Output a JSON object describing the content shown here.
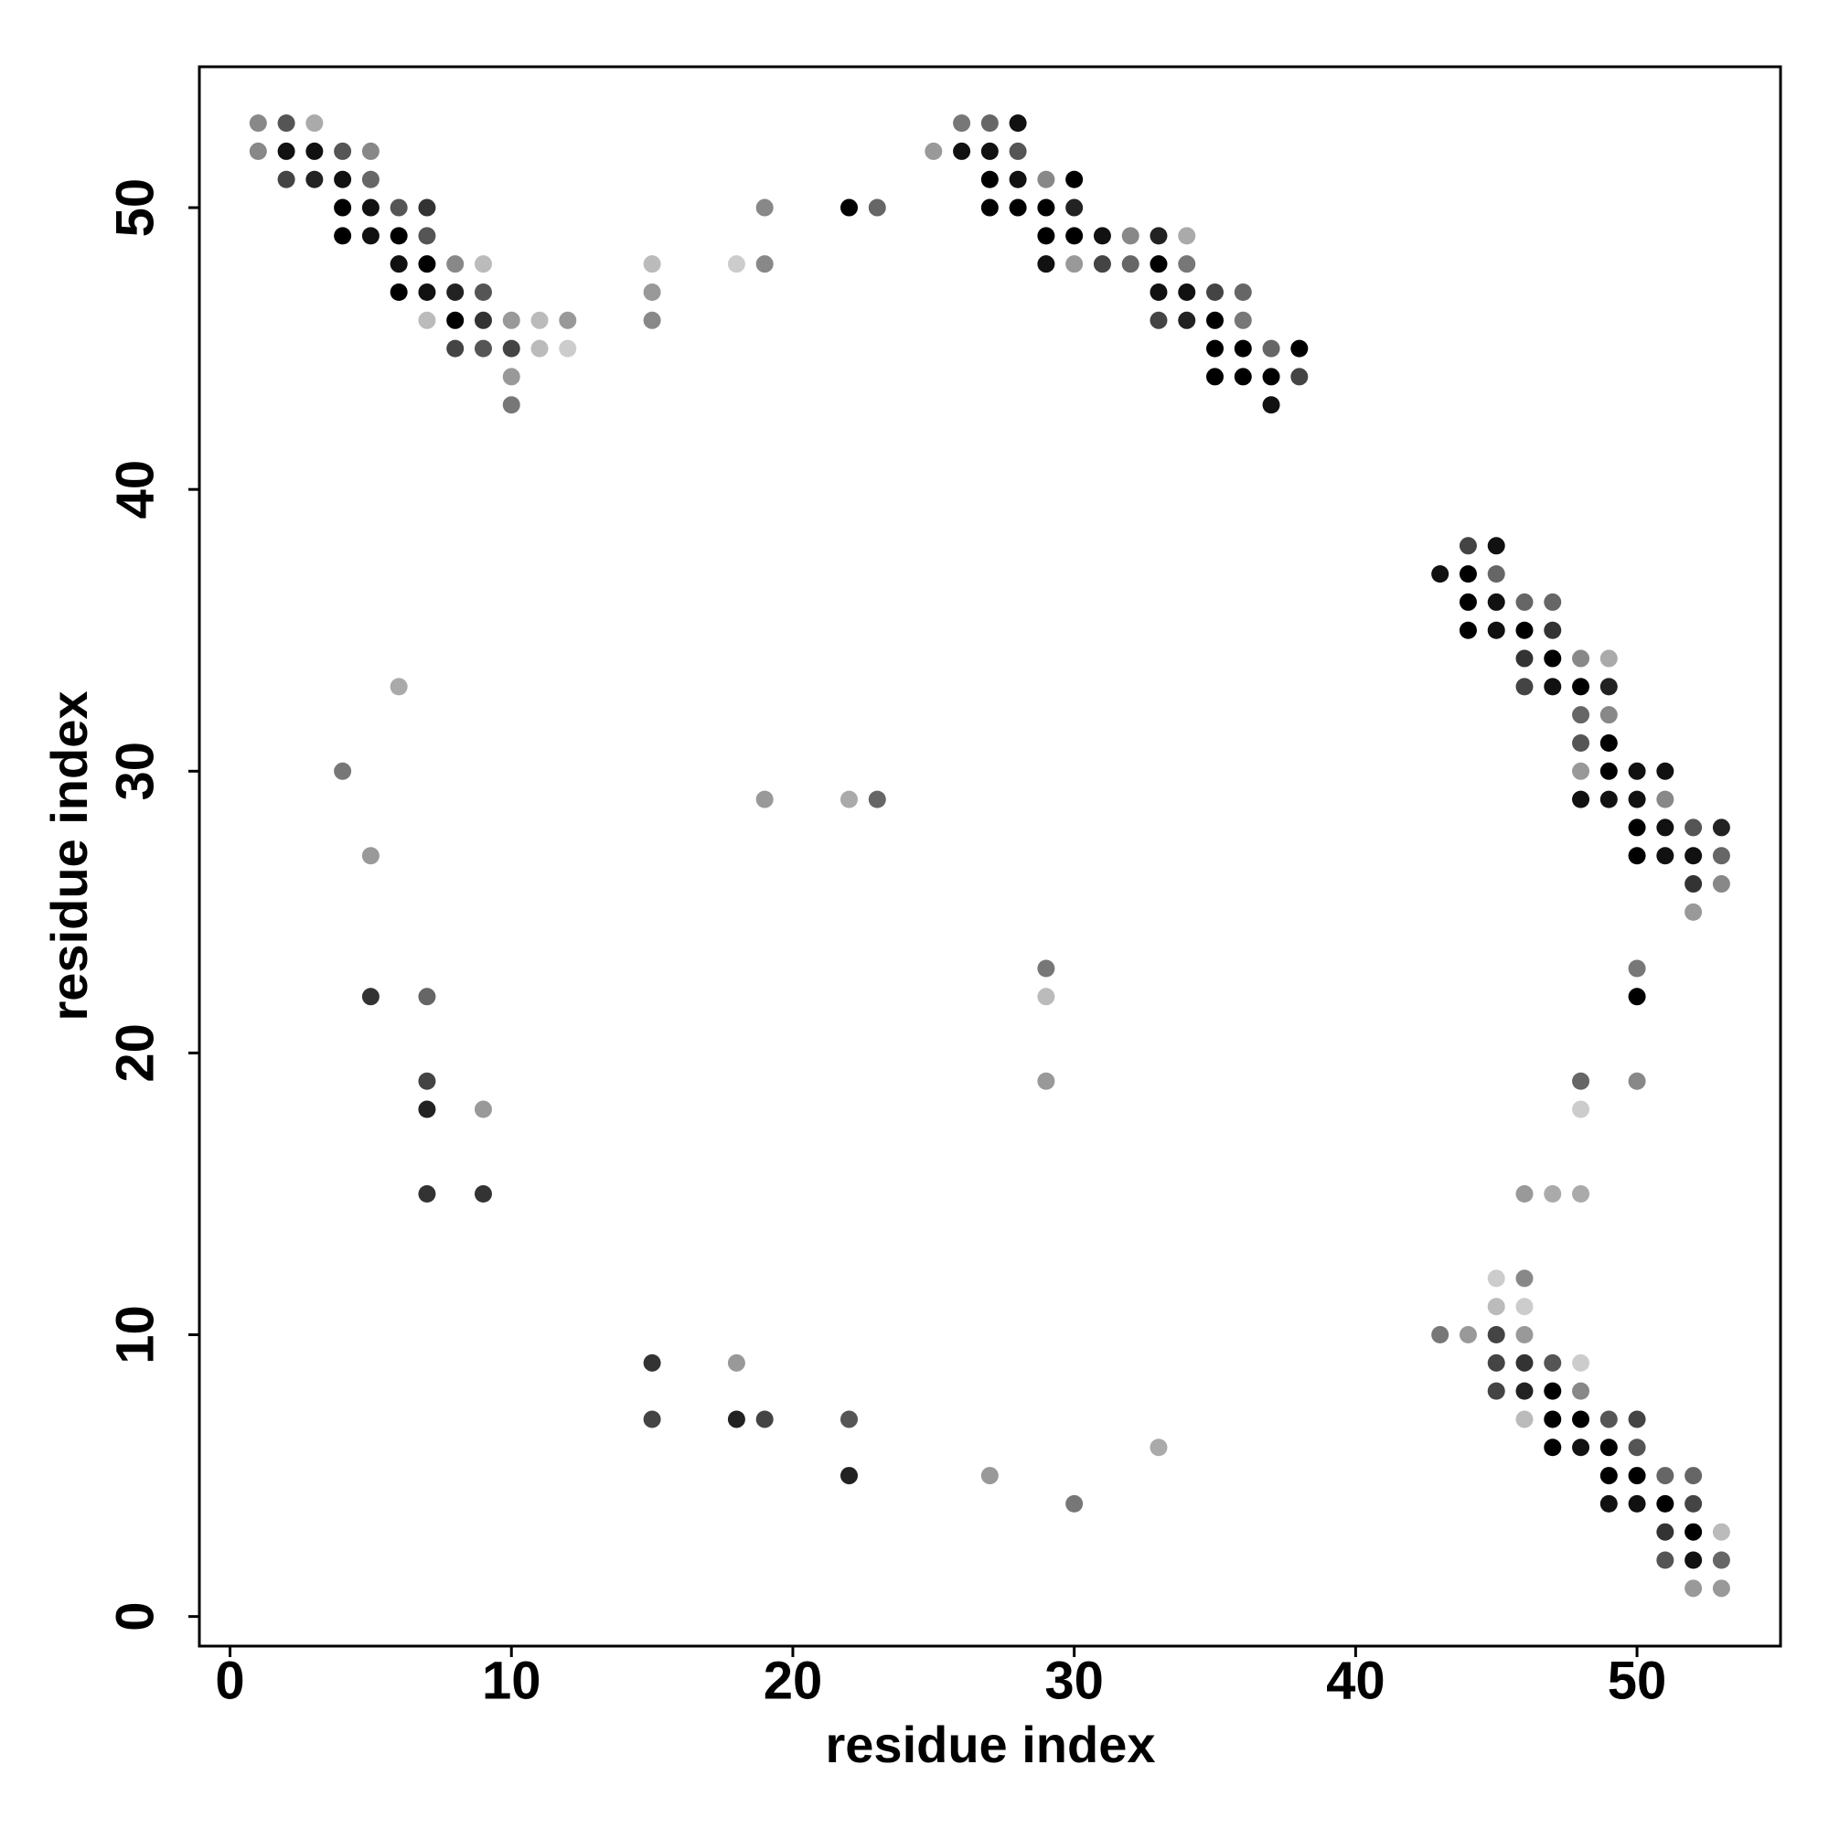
{
  "chart_data": {
    "type": "scatter",
    "xlabel": "residue index",
    "ylabel": "residue index",
    "xlim": [
      -1.09,
      55.1
    ],
    "ylim": [
      -1.05,
      55.0
    ],
    "xticks": [
      0,
      10,
      20,
      30,
      40,
      50
    ],
    "yticks": [
      0,
      10,
      20,
      30,
      40,
      50
    ],
    "x": [
      1,
      2,
      3,
      26,
      27,
      28,
      1,
      2,
      3,
      4,
      5,
      25,
      26,
      27,
      28,
      2,
      3,
      4,
      5,
      27,
      28,
      29,
      30,
      4,
      5,
      6,
      7,
      19,
      22,
      23,
      27,
      28,
      29,
      30,
      4,
      5,
      6,
      7,
      29,
      30,
      31,
      32,
      33,
      34,
      6,
      7,
      8,
      9,
      15,
      18,
      19,
      29,
      30,
      31,
      32,
      33,
      34,
      6,
      7,
      8,
      9,
      15,
      33,
      34,
      35,
      36,
      7,
      8,
      9,
      10,
      11,
      12,
      15,
      33,
      34,
      35,
      36,
      8,
      9,
      10,
      11,
      12,
      35,
      36,
      37,
      38,
      10,
      35,
      36,
      37,
      38,
      10,
      37,
      44,
      45,
      43,
      44,
      45,
      44,
      45,
      46,
      47,
      44,
      45,
      46,
      47,
      46,
      47,
      48,
      49,
      6,
      46,
      47,
      48,
      49,
      48,
      49,
      48,
      49,
      4,
      48,
      49,
      50,
      51,
      19,
      22,
      23,
      48,
      49,
      50,
      51,
      50,
      51,
      52,
      53,
      5,
      50,
      51,
      52,
      53,
      52,
      53,
      52,
      29,
      50,
      5,
      7,
      29,
      50,
      7,
      29,
      48,
      50,
      7,
      9,
      48,
      7,
      9,
      46,
      47,
      48,
      45,
      46,
      45,
      46,
      43,
      44,
      45,
      46,
      15,
      18,
      45,
      46,
      47,
      48,
      45,
      46,
      47,
      48,
      15,
      18,
      19,
      22,
      46,
      47,
      48,
      49,
      50,
      33,
      47,
      48,
      49,
      50,
      22,
      27,
      49,
      50,
      51,
      52,
      30,
      49,
      50,
      51,
      52,
      51,
      52,
      53,
      51,
      52,
      53,
      52,
      53
    ],
    "values": [
      53,
      53,
      53,
      53,
      53,
      53,
      52,
      52,
      52,
      52,
      52,
      52,
      52,
      52,
      52,
      51,
      51,
      51,
      51,
      51,
      51,
      51,
      51,
      50,
      50,
      50,
      50,
      50,
      50,
      50,
      50,
      50,
      50,
      50,
      49,
      49,
      49,
      49,
      49,
      49,
      49,
      49,
      49,
      49,
      48,
      48,
      48,
      48,
      48,
      48,
      48,
      48,
      48,
      48,
      48,
      48,
      48,
      47,
      47,
      47,
      47,
      47,
      47,
      47,
      47,
      47,
      46,
      46,
      46,
      46,
      46,
      46,
      46,
      46,
      46,
      46,
      46,
      45,
      45,
      45,
      45,
      45,
      45,
      45,
      45,
      45,
      44,
      44,
      44,
      44,
      44,
      43,
      43,
      38,
      38,
      37,
      37,
      37,
      36,
      36,
      36,
      36,
      35,
      35,
      35,
      35,
      34,
      34,
      34,
      34,
      33,
      33,
      33,
      33,
      33,
      32,
      32,
      31,
      31,
      30,
      30,
      30,
      30,
      30,
      29,
      29,
      29,
      29,
      29,
      29,
      29,
      28,
      28,
      28,
      28,
      27,
      27,
      27,
      27,
      27,
      26,
      26,
      25,
      23,
      23,
      22,
      22,
      22,
      22,
      19,
      19,
      19,
      19,
      18,
      18,
      18,
      15,
      15,
      15,
      15,
      15,
      12,
      12,
      11,
      11,
      10,
      10,
      10,
      10,
      9,
      9,
      9,
      9,
      9,
      9,
      8,
      8,
      8,
      8,
      7,
      7,
      7,
      7,
      7,
      7,
      7,
      7,
      7,
      6,
      6,
      6,
      6,
      6,
      5,
      5,
      5,
      5,
      5,
      5,
      4,
      4,
      4,
      4,
      4,
      3,
      3,
      3,
      2,
      2,
      2,
      1,
      1
    ],
    "colors": [
      "#888",
      "#555",
      "#aaa",
      "#777",
      "#666",
      "#111",
      "#888",
      "#111",
      "#111",
      "#555",
      "#888",
      "#999",
      "#111",
      "#111",
      "#555",
      "#444",
      "#222",
      "#111",
      "#666",
      "#000",
      "#111",
      "#888",
      "#000",
      "#000",
      "#111",
      "#555",
      "#333",
      "#888",
      "#000",
      "#666",
      "#000",
      "#000",
      "#000",
      "#222",
      "#000",
      "#111",
      "#000",
      "#555",
      "#000",
      "#000",
      "#111",
      "#888",
      "#222",
      "#aaa",
      "#111",
      "#000",
      "#888",
      "#bbb",
      "#bbb",
      "#ccc",
      "#888",
      "#111",
      "#999",
      "#444",
      "#666",
      "#000",
      "#777",
      "#000",
      "#111",
      "#222",
      "#555",
      "#999",
      "#111",
      "#111",
      "#444",
      "#666",
      "#bbb",
      "#000",
      "#333",
      "#999",
      "#bbb",
      "#999",
      "#888",
      "#444",
      "#222",
      "#000",
      "#777",
      "#444",
      "#555",
      "#444",
      "#bbb",
      "#ccc",
      "#000",
      "#000",
      "#666",
      "#000",
      "#999",
      "#000",
      "#000",
      "#000",
      "#444",
      "#777",
      "#111",
      "#444",
      "#111",
      "#111",
      "#000",
      "#666",
      "#000",
      "#111",
      "#666",
      "#666",
      "#000",
      "#111",
      "#000",
      "#333",
      "#333",
      "#000",
      "#888",
      "#aaa",
      "#aaa",
      "#444",
      "#111",
      "#000",
      "#222",
      "#666",
      "#888",
      "#555",
      "#000",
      "#777",
      "#999",
      "#000",
      "#111",
      "#111",
      "#999",
      "#aaa",
      "#666",
      "#111",
      "#111",
      "#111",
      "#888",
      "#000",
      "#111",
      "#555",
      "#222",
      "#999",
      "#000",
      "#111",
      "#111",
      "#666",
      "#333",
      "#888",
      "#999",
      "#777",
      "#777",
      "#333",
      "#666",
      "#bbb",
      "#000",
      "#444",
      "#999",
      "#666",
      "#888",
      "#222",
      "#999",
      "#ccc",
      "#333",
      "#333",
      "#999",
      "#aaa",
      "#aaa",
      "#ccc",
      "#888",
      "#bbb",
      "#ccc",
      "#777",
      "#999",
      "#444",
      "#999",
      "#333",
      "#999",
      "#444",
      "#333",
      "#555",
      "#ccc",
      "#444",
      "#222",
      "#000",
      "#888",
      "#444",
      "#222",
      "#444",
      "#555",
      "#bbb",
      "#000",
      "#000",
      "#555",
      "#444",
      "#aaa",
      "#000",
      "#111",
      "#000",
      "#555",
      "#222",
      "#999",
      "#000",
      "#000",
      "#666",
      "#666",
      "#777",
      "#111",
      "#111",
      "#000",
      "#444",
      "#333",
      "#000",
      "#bbb",
      "#555",
      "#111",
      "#666",
      "#999",
      "#999"
    ]
  }
}
